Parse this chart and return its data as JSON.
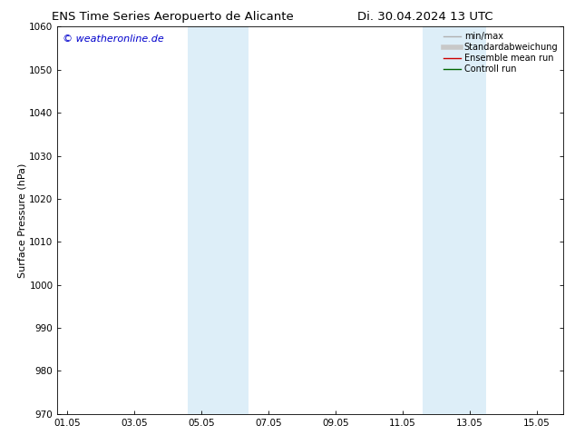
{
  "title_left": "ENS Time Series Aeropuerto de Alicante",
  "title_right": "Di. 30.04.2024 13 UTC",
  "ylabel": "Surface Pressure (hPa)",
  "ylim": [
    970,
    1060
  ],
  "yticks": [
    970,
    980,
    990,
    1000,
    1010,
    1020,
    1030,
    1040,
    1050,
    1060
  ],
  "xtick_labels": [
    "01.05",
    "03.05",
    "05.05",
    "07.05",
    "09.05",
    "11.05",
    "13.05",
    "15.05"
  ],
  "xtick_positions": [
    0,
    2,
    4,
    6,
    8,
    10,
    12,
    14
  ],
  "xlim": [
    -0.3,
    14.8
  ],
  "shaded_regions": [
    {
      "xmin": 3.6,
      "xmax": 5.4
    },
    {
      "xmin": 10.6,
      "xmax": 12.5
    }
  ],
  "shaded_color": "#ddeef8",
  "watermark_text": "© weatheronline.de",
  "watermark_color": "#0000cc",
  "legend_entries": [
    {
      "label": "min/max",
      "color": "#b0b0b0",
      "lw": 1.0,
      "style": "-"
    },
    {
      "label": "Standardabweichung",
      "color": "#c8c8c8",
      "lw": 4,
      "style": "-"
    },
    {
      "label": "Ensemble mean run",
      "color": "#cc0000",
      "lw": 1.0,
      "style": "-"
    },
    {
      "label": "Controll run",
      "color": "#006600",
      "lw": 1.0,
      "style": "-"
    }
  ],
  "background_color": "#ffffff",
  "title_fontsize": 9.5,
  "axis_label_fontsize": 8,
  "tick_fontsize": 7.5,
  "legend_fontsize": 7,
  "watermark_fontsize": 8
}
